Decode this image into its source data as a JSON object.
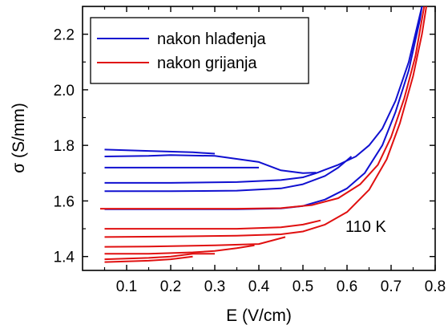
{
  "chart_data": {
    "type": "line",
    "title": "",
    "xlabel": "E (V/cm)",
    "ylabel": "σ (S/mm)",
    "xlim": [
      0,
      0.8
    ],
    "ylim": [
      1.35,
      2.3
    ],
    "x_ticks": [
      0.1,
      0.2,
      0.3,
      0.4,
      0.5,
      0.6,
      0.7,
      0.8
    ],
    "y_ticks": [
      1.4,
      1.6,
      1.8,
      2.0,
      2.2
    ],
    "x_tick_labels": [
      "0.1",
      "0.2",
      "0.3",
      "0.4",
      "0.5",
      "0.6",
      "0.7",
      "0.8"
    ],
    "y_tick_labels": [
      "1.4",
      "1.6",
      "1.8",
      "2.0",
      "2.2"
    ],
    "grid": false,
    "legend_position": "top-left",
    "annotation": "110 K",
    "colors": {
      "heating_curve_cooling": "#1010d0",
      "heating_curve_heating": "#e01010"
    },
    "series": [
      {
        "name": "nakon hlađenja",
        "color": "#1010d0",
        "curves": [
          [
            [
              0.05,
              1.785
            ],
            [
              0.15,
              1.78
            ],
            [
              0.25,
              1.775
            ],
            [
              0.3,
              1.77
            ]
          ],
          [
            [
              0.05,
              1.76
            ],
            [
              0.15,
              1.762
            ],
            [
              0.2,
              1.765
            ],
            [
              0.3,
              1.762
            ],
            [
              0.4,
              1.74
            ],
            [
              0.45,
              1.71
            ],
            [
              0.5,
              1.7
            ],
            [
              0.53,
              1.702
            ]
          ],
          [
            [
              0.05,
              1.72
            ],
            [
              0.2,
              1.72
            ],
            [
              0.3,
              1.72
            ],
            [
              0.4,
              1.72
            ]
          ],
          [
            [
              0.05,
              1.665
            ],
            [
              0.2,
              1.665
            ],
            [
              0.35,
              1.668
            ],
            [
              0.45,
              1.675
            ],
            [
              0.5,
              1.685
            ],
            [
              0.53,
              1.7
            ],
            [
              0.55,
              1.712
            ],
            [
              0.58,
              1.73
            ],
            [
              0.62,
              1.76
            ],
            [
              0.65,
              1.8
            ],
            [
              0.68,
              1.86
            ],
            [
              0.71,
              1.96
            ],
            [
              0.74,
              2.1
            ],
            [
              0.77,
              2.3
            ]
          ],
          [
            [
              0.05,
              1.635
            ],
            [
              0.2,
              1.635
            ],
            [
              0.35,
              1.637
            ],
            [
              0.45,
              1.645
            ],
            [
              0.5,
              1.66
            ],
            [
              0.55,
              1.69
            ],
            [
              0.58,
              1.72
            ],
            [
              0.61,
              1.76
            ]
          ],
          [
            [
              0.05,
              1.57
            ],
            [
              0.2,
              1.57
            ],
            [
              0.35,
              1.57
            ],
            [
              0.45,
              1.573
            ],
            [
              0.5,
              1.582
            ],
            [
              0.55,
              1.605
            ],
            [
              0.6,
              1.645
            ],
            [
              0.64,
              1.7
            ],
            [
              0.68,
              1.8
            ],
            [
              0.71,
              1.92
            ],
            [
              0.74,
              2.07
            ],
            [
              0.765,
              2.25
            ],
            [
              0.77,
              2.3
            ]
          ]
        ]
      },
      {
        "name": "nakon grijanja",
        "color": "#e01010",
        "curves": [
          [
            [
              0.04,
              1.572
            ],
            [
              0.2,
              1.572
            ],
            [
              0.35,
              1.572
            ],
            [
              0.45,
              1.574
            ],
            [
              0.52,
              1.585
            ],
            [
              0.58,
              1.61
            ],
            [
              0.63,
              1.66
            ],
            [
              0.67,
              1.73
            ],
            [
              0.7,
              1.83
            ],
            [
              0.73,
              1.97
            ],
            [
              0.755,
              2.12
            ],
            [
              0.775,
              2.3
            ]
          ],
          [
            [
              0.05,
              1.5
            ],
            [
              0.2,
              1.5
            ],
            [
              0.35,
              1.5
            ],
            [
              0.45,
              1.505
            ],
            [
              0.5,
              1.515
            ],
            [
              0.54,
              1.53
            ]
          ],
          [
            [
              0.05,
              1.47
            ],
            [
              0.2,
              1.472
            ],
            [
              0.35,
              1.475
            ],
            [
              0.45,
              1.48
            ],
            [
              0.5,
              1.49
            ],
            [
              0.55,
              1.515
            ],
            [
              0.6,
              1.56
            ],
            [
              0.65,
              1.64
            ],
            [
              0.69,
              1.75
            ],
            [
              0.72,
              1.88
            ],
            [
              0.75,
              2.05
            ],
            [
              0.77,
              2.2
            ],
            [
              0.78,
              2.3
            ]
          ],
          [
            [
              0.05,
              1.435
            ],
            [
              0.15,
              1.436
            ],
            [
              0.3,
              1.44
            ],
            [
              0.4,
              1.445
            ],
            [
              0.46,
              1.47
            ]
          ],
          [
            [
              0.05,
              1.41
            ],
            [
              0.15,
              1.41
            ],
            [
              0.25,
              1.415
            ],
            [
              0.3,
              1.42
            ],
            [
              0.35,
              1.43
            ],
            [
              0.39,
              1.44
            ]
          ],
          [
            [
              0.05,
              1.39
            ],
            [
              0.15,
              1.395
            ],
            [
              0.2,
              1.4
            ],
            [
              0.25,
              1.41
            ],
            [
              0.3,
              1.41
            ]
          ],
          [
            [
              0.05,
              1.38
            ],
            [
              0.15,
              1.385
            ],
            [
              0.2,
              1.39
            ],
            [
              0.25,
              1.4
            ]
          ]
        ]
      }
    ]
  }
}
